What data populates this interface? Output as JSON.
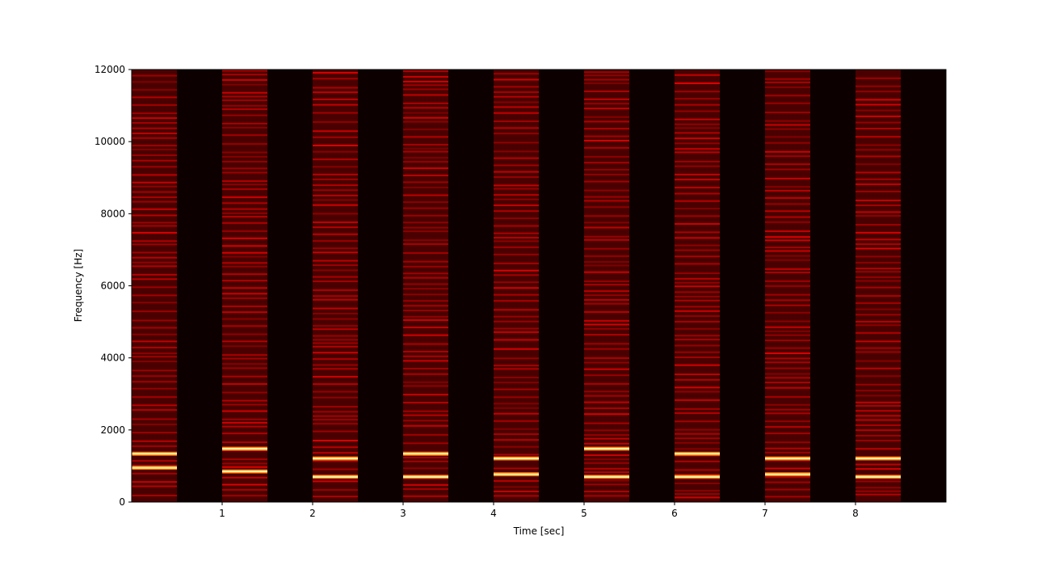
{
  "chart_data": {
    "type": "heatmap",
    "title": "",
    "xlabel": "Time [sec]",
    "ylabel": "Frequency [Hz]",
    "xlim": [
      0,
      9
    ],
    "ylim": [
      0,
      12000
    ],
    "xticks": [
      1,
      2,
      3,
      4,
      5,
      6,
      7,
      8
    ],
    "yticks": [
      0,
      2000,
      4000,
      6000,
      8000,
      10000,
      12000
    ],
    "colormap": "hot",
    "background_color": "#0d0000",
    "tone_bursts": [
      {
        "start": 0.0,
        "end": 0.5,
        "peaks_hz": [
          950,
          1340
        ]
      },
      {
        "start": 1.0,
        "end": 1.5,
        "peaks_hz": [
          850,
          1480
        ]
      },
      {
        "start": 2.0,
        "end": 2.5,
        "peaks_hz": [
          700,
          1210
        ]
      },
      {
        "start": 3.0,
        "end": 3.5,
        "peaks_hz": [
          700,
          1340
        ]
      },
      {
        "start": 4.0,
        "end": 4.5,
        "peaks_hz": [
          770,
          1210
        ]
      },
      {
        "start": 5.0,
        "end": 5.5,
        "peaks_hz": [
          700,
          1480
        ]
      },
      {
        "start": 6.0,
        "end": 6.5,
        "peaks_hz": [
          700,
          1340
        ]
      },
      {
        "start": 7.0,
        "end": 7.5,
        "peaks_hz": [
          770,
          1210
        ]
      },
      {
        "start": 8.0,
        "end": 8.5,
        "peaks_hz": [
          700,
          1210
        ]
      }
    ]
  }
}
